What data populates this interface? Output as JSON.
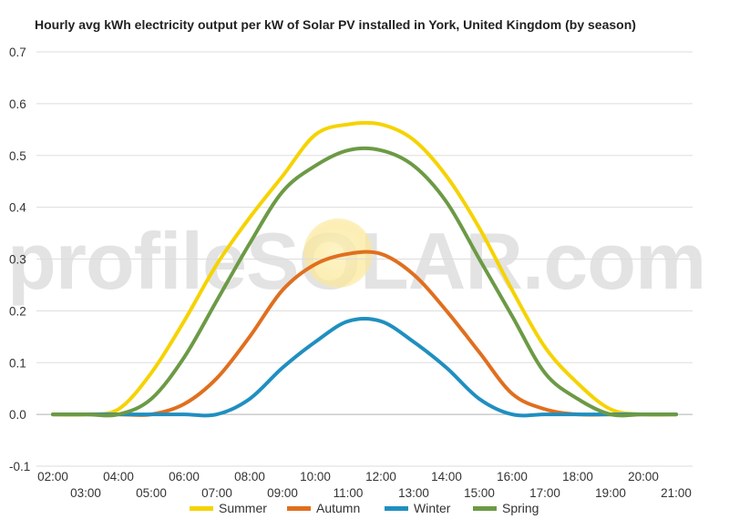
{
  "chart_data": {
    "type": "line",
    "title": "Hourly avg kWh electricity output per kW of Solar PV installed in York, United Kingdom (by season)",
    "xlabel": "",
    "ylabel": "",
    "x": [
      "02:00",
      "03:00",
      "04:00",
      "05:00",
      "06:00",
      "07:00",
      "08:00",
      "09:00",
      "10:00",
      "11:00",
      "12:00",
      "13:00",
      "14:00",
      "15:00",
      "16:00",
      "17:00",
      "18:00",
      "19:00",
      "20:00",
      "21:00"
    ],
    "yticks": [
      "-0.1",
      "0.0",
      "0.1",
      "0.2",
      "0.3",
      "0.4",
      "0.5",
      "0.6",
      "0.7"
    ],
    "ylim": [
      -0.1,
      0.7
    ],
    "grid": true,
    "legend_position": "bottom",
    "series": [
      {
        "name": "Summer",
        "color": "#f5d300",
        "values": [
          0.0,
          0.0,
          0.01,
          0.08,
          0.18,
          0.29,
          0.38,
          0.46,
          0.54,
          0.56,
          0.56,
          0.53,
          0.46,
          0.36,
          0.24,
          0.13,
          0.06,
          0.01,
          0.0,
          0.0
        ]
      },
      {
        "name": "Autumn",
        "color": "#e06f1f",
        "values": [
          0.0,
          0.0,
          0.0,
          0.0,
          0.02,
          0.07,
          0.15,
          0.24,
          0.29,
          0.31,
          0.31,
          0.27,
          0.2,
          0.12,
          0.04,
          0.01,
          0.0,
          0.0,
          0.0,
          0.0
        ]
      },
      {
        "name": "Winter",
        "color": "#1f8fc0",
        "values": [
          0.0,
          0.0,
          0.0,
          0.0,
          0.0,
          0.0,
          0.03,
          0.09,
          0.14,
          0.18,
          0.18,
          0.14,
          0.09,
          0.03,
          0.0,
          0.0,
          0.0,
          0.0,
          0.0,
          0.0
        ]
      },
      {
        "name": "Spring",
        "color": "#6c9a45",
        "values": [
          0.0,
          0.0,
          0.0,
          0.03,
          0.11,
          0.22,
          0.33,
          0.43,
          0.48,
          0.51,
          0.51,
          0.48,
          0.41,
          0.3,
          0.19,
          0.08,
          0.03,
          0.0,
          0.0,
          0.0
        ]
      }
    ]
  },
  "watermark": {
    "text": "profileSOLAR.com"
  }
}
